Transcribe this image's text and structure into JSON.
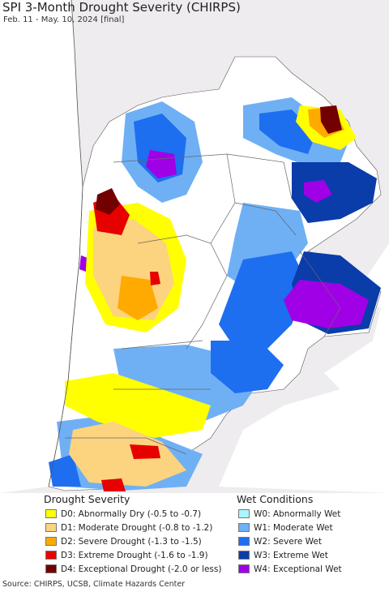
{
  "title": "SPI 3-Month Drought Severity (CHIRPS)",
  "subtitle": "Feb. 11 - May. 10, 2024 [final]",
  "colors": {
    "land_bg": "#ffffff",
    "outside": "#eeecef",
    "ocean": "#ffffff"
  },
  "legend": {
    "drought": {
      "heading": "Drought Severity",
      "items": [
        {
          "label": "D0: Abnormally Dry (-0.5 to -0.7)",
          "color": "#ffff00"
        },
        {
          "label": "D1: Moderate Drought (-0.8 to -1.2)",
          "color": "#fcd37f"
        },
        {
          "label": "D2: Severe Drought (-1.3 to -1.5)",
          "color": "#ffaa00"
        },
        {
          "label": "D3: Extreme Drought (-1.6 to -1.9)",
          "color": "#e60000"
        },
        {
          "label": "D4: Exceptional Drought (-2.0 or less)",
          "color": "#730000"
        }
      ]
    },
    "wet": {
      "heading": "Wet Conditions",
      "items": [
        {
          "label": "W0: Abnormally Wet",
          "color": "#aaf5ff"
        },
        {
          "label": "W1: Moderate Wet",
          "color": "#6fb0f5"
        },
        {
          "label": "W2: Severe Wet",
          "color": "#1e6ef0"
        },
        {
          "label": "W3: Extreme Wet",
          "color": "#0a3caa"
        },
        {
          "label": "W4: Exceptional Wet",
          "color": "#a000e6"
        }
      ]
    }
  },
  "source": "Source: CHIRPS, UCSB, Climate Hazards Center"
}
